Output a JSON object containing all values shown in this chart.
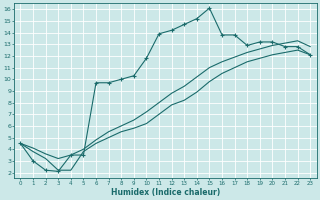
{
  "xlabel": "Humidex (Indice chaleur)",
  "xlim": [
    -0.5,
    23.5
  ],
  "ylim": [
    1.5,
    16.5
  ],
  "xticks": [
    0,
    1,
    2,
    3,
    4,
    5,
    6,
    7,
    8,
    9,
    10,
    11,
    12,
    13,
    14,
    15,
    16,
    17,
    18,
    19,
    20,
    21,
    22,
    23
  ],
  "yticks": [
    2,
    3,
    4,
    5,
    6,
    7,
    8,
    9,
    10,
    11,
    12,
    13,
    14,
    15,
    16
  ],
  "bg_color": "#cce8e8",
  "line_color": "#1a6b6b",
  "grid_color": "#b8d8d8",
  "line1_x": [
    0,
    1,
    2,
    3,
    4,
    5,
    6,
    7,
    8,
    9,
    10,
    11,
    12,
    13,
    14,
    15,
    16,
    17,
    18,
    19,
    20,
    21,
    22,
    23
  ],
  "line1_y": [
    4.5,
    3.0,
    2.2,
    2.1,
    3.5,
    3.5,
    9.7,
    9.7,
    10.0,
    10.3,
    11.8,
    13.9,
    14.2,
    14.7,
    15.2,
    16.1,
    13.8,
    13.8,
    12.9,
    13.2,
    13.2,
    12.8,
    12.8,
    12.1
  ],
  "line2_x": [
    0,
    1,
    2,
    3,
    4,
    5,
    6,
    7,
    8,
    9,
    10,
    11,
    12,
    13,
    14,
    15,
    16,
    17,
    18,
    19,
    20,
    21,
    22,
    23
  ],
  "line2_y": [
    4.5,
    3.8,
    3.2,
    2.2,
    2.2,
    3.8,
    4.5,
    5.0,
    5.5,
    5.8,
    6.2,
    7.0,
    7.8,
    8.2,
    8.9,
    9.8,
    10.5,
    11.0,
    11.5,
    11.8,
    12.1,
    12.3,
    12.5,
    12.1
  ],
  "line3_x": [
    0,
    1,
    2,
    3,
    4,
    5,
    6,
    7,
    8,
    9,
    10,
    11,
    12,
    13,
    14,
    15,
    16,
    17,
    18,
    19,
    20,
    21,
    22,
    23
  ],
  "line3_y": [
    4.5,
    4.1,
    3.6,
    3.2,
    3.5,
    4.0,
    4.8,
    5.5,
    6.0,
    6.5,
    7.2,
    8.0,
    8.8,
    9.4,
    10.2,
    11.0,
    11.5,
    11.9,
    12.3,
    12.6,
    12.9,
    13.1,
    13.3,
    12.8
  ]
}
